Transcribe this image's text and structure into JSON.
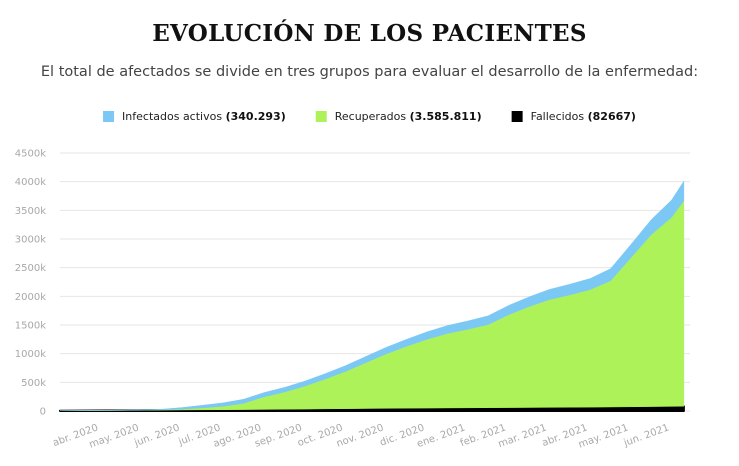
{
  "header": {
    "title": "EVOLUCIÓN DE LOS PACIENTES",
    "subtitle": "El total de afectados se divide en tres grupos para evaluar el desarrollo de la enfermedad:"
  },
  "chart_data": {
    "type": "area",
    "stacked": true,
    "title": "EVOLUCIÓN DE LOS PACIENTES",
    "subtitle": "El total de afectados se divide en tres grupos para evaluar el desarrollo de la enfermedad:",
    "xlabel": "",
    "ylabel": "",
    "ylim": [
      0,
      4500000
    ],
    "grid": true,
    "legend_position": "top-center",
    "legend": [
      {
        "name": "Infectados activos",
        "value": "340.293",
        "color": "#7cc8f5"
      },
      {
        "name": "Recuperados",
        "value": "3.585.811",
        "color": "#aef25a"
      },
      {
        "name": "Fallecidos",
        "value": "82667",
        "color": "#000000"
      }
    ],
    "y_ticks": [
      "0",
      "500k",
      "1000k",
      "1500k",
      "2000k",
      "2500k",
      "3000k",
      "3500k",
      "4000k",
      "4500k"
    ],
    "y_tick_values": [
      0,
      500000,
      1000000,
      1500000,
      2000000,
      2500000,
      3000000,
      3500000,
      4000000,
      4500000
    ],
    "x_ticks": [
      "abr. 2020",
      "may. 2020",
      "jun. 2020",
      "jul. 2020",
      "ago. 2020",
      "sep. 2020",
      "oct. 2020",
      "nov. 2020",
      "dic. 2020",
      "ene. 2021",
      "feb. 2021",
      "mar. 2021",
      "abr. 2021",
      "may. 2021",
      "jun. 2021"
    ],
    "x_tick_values": [
      0.95,
      1.95,
      2.95,
      3.95,
      4.95,
      5.95,
      6.95,
      7.95,
      8.95,
      9.95,
      10.95,
      11.95,
      12.95,
      13.95,
      14.95
    ],
    "x_range": [
      0,
      15.45
    ],
    "x": [
      0,
      1,
      2,
      2.5,
      3,
      3.5,
      4,
      4.5,
      5,
      5.5,
      6,
      6.5,
      7,
      7.5,
      8,
      8.5,
      9,
      9.5,
      10,
      10.5,
      11,
      11.5,
      12,
      12.5,
      13,
      13.5,
      14,
      14.5,
      15,
      15.3
    ],
    "series": [
      {
        "name": "Fallecidos",
        "color": "#000000",
        "values": [
          5000,
          8000,
          12000,
          15000,
          18000,
          20000,
          22000,
          24000,
          27000,
          30000,
          33000,
          37000,
          40000,
          43000,
          46000,
          49000,
          51000,
          53000,
          55000,
          57000,
          59000,
          61000,
          63000,
          65000,
          67000,
          70000,
          73000,
          77000,
          80000,
          82667
        ]
      },
      {
        "name": "Recuperados",
        "color": "#aef25a",
        "values": [
          0,
          1000,
          3000,
          6000,
          15000,
          35000,
          60000,
          110000,
          220000,
          300000,
          400000,
          520000,
          650000,
          800000,
          950000,
          1080000,
          1200000,
          1300000,
          1370000,
          1450000,
          1620000,
          1760000,
          1880000,
          1960000,
          2050000,
          2200000,
          2600000,
          3000000,
          3300000,
          3585811
        ]
      },
      {
        "name": "Infectados activos",
        "color": "#7cc8f5",
        "values": [
          0,
          3000,
          6000,
          10000,
          27000,
          45000,
          60000,
          70000,
          73000,
          80000,
          87000,
          93000,
          100000,
          107000,
          114000,
          121000,
          129000,
          137000,
          145000,
          153000,
          161000,
          168000,
          177000,
          185000,
          193000,
          210000,
          230000,
          260000,
          300000,
          340293
        ]
      }
    ]
  }
}
